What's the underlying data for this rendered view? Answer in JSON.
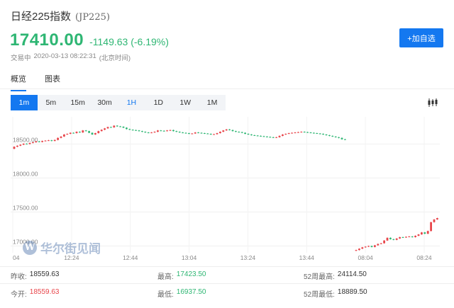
{
  "header": {
    "name": "日经225指数",
    "code": "(JP225)",
    "price": "17410.00",
    "change": "-1149.63 (-6.19%)",
    "status": "交易中",
    "timestamp": "2020-03-13 08:22:31",
    "timezone": "(北京时间)",
    "add_button": "+加自选"
  },
  "tabs": [
    {
      "label": "概览",
      "active": true
    },
    {
      "label": "图表",
      "active": false
    }
  ],
  "periods": [
    "1m",
    "5m",
    "15m",
    "30m",
    "1H",
    "1D",
    "1W",
    "1M"
  ],
  "active_period": "1m",
  "highlight_period": "1H",
  "watermark": "华尔街见闻",
  "colors": {
    "up": "#e8464b",
    "down": "#2eb673",
    "accent": "#1478f0"
  },
  "stats": {
    "row1": [
      {
        "label": "昨收:",
        "value": "18559.63",
        "tone": "normal"
      },
      {
        "label": "最高:",
        "value": "17423.50",
        "tone": "green"
      },
      {
        "label": "52周最高:",
        "value": "24114.50",
        "tone": "normal"
      }
    ],
    "row2": [
      {
        "label": "今开:",
        "value": "18559.63",
        "tone": "red"
      },
      {
        "label": "最低:",
        "value": "16937.50",
        "tone": "green"
      },
      {
        "label": "52周最低:",
        "value": "18889.50",
        "tone": "normal"
      }
    ]
  },
  "chart_data": {
    "type": "candlestick",
    "x_tick_labels": [
      "04",
      "12:24",
      "12:44",
      "13:04",
      "13:24",
      "13:44",
      "08:04",
      "08:24"
    ],
    "y_tick_labels": [
      "18500.00",
      "18000.00",
      "17500.00",
      "17000.00"
    ],
    "ylim": [
      16900,
      18900
    ],
    "grid": true,
    "segments": [
      {
        "name": "session1",
        "close": [
          18460,
          18475,
          18490,
          18505,
          18500,
          18515,
          18525,
          18540,
          18530,
          18545,
          18550,
          18555,
          18545,
          18560,
          18590,
          18610,
          18640,
          18650,
          18665,
          18660,
          18680,
          18670,
          18700,
          18690,
          18665,
          18640,
          18660,
          18690,
          18710,
          18730,
          18750,
          18745,
          18770,
          18760,
          18755,
          18740,
          18720,
          18710,
          18705,
          18700,
          18690,
          18680,
          18670,
          18665,
          18670,
          18680,
          18700,
          18695,
          18690,
          18700,
          18705,
          18690,
          18680,
          18670,
          18665,
          18660,
          18650,
          18655,
          18670,
          18665,
          18660,
          18655,
          18650,
          18640,
          18645,
          18660,
          18680,
          18700,
          18715,
          18705,
          18690,
          18680,
          18675,
          18665,
          18650,
          18640,
          18630,
          18625,
          18620,
          18615,
          18610,
          18605,
          18600,
          18595,
          18600,
          18620,
          18640,
          18650,
          18660,
          18665,
          18670,
          18675,
          18680,
          18675,
          18670,
          18665,
          18660,
          18655,
          18650,
          18640,
          18630,
          18620,
          18610,
          18600,
          18590,
          18570,
          18565
        ]
      },
      {
        "name": "session2",
        "close": [
          16940,
          16960,
          16980,
          16990,
          17000,
          16985,
          17010,
          17030,
          17040,
          17080,
          17120,
          17100,
          17090,
          17110,
          17130,
          17125,
          17135,
          17140,
          17130,
          17150,
          17170,
          17200,
          17180,
          17220,
          17350,
          17390,
          17410
        ]
      }
    ]
  }
}
